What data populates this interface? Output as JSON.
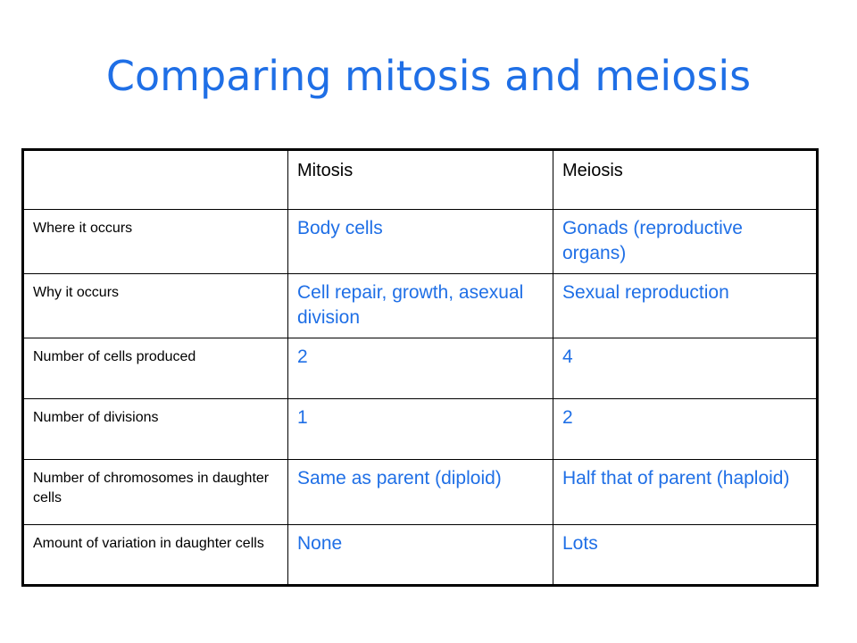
{
  "slide": {
    "title": "Comparing mitosis and meiosis"
  },
  "table": {
    "headers": [
      "",
      "Mitosis",
      "Meiosis"
    ],
    "rows": [
      {
        "label": "Where it occurs",
        "mitosis": "Body cells",
        "meiosis": "Gonads (reproductive organs)"
      },
      {
        "label": "Why it occurs",
        "mitosis": "Cell repair, growth, asexual division",
        "meiosis": "Sexual reproduction"
      },
      {
        "label": "Number of cells produced",
        "mitosis": "2",
        "meiosis": "4"
      },
      {
        "label": "Number of divisions",
        "mitosis": "1",
        "meiosis": "2"
      },
      {
        "label": "Number of chromosomes in daughter cells",
        "mitosis": "Same as parent (diploid)",
        "meiosis": "Half that of parent (haploid)"
      },
      {
        "label": "Amount of variation in daughter cells",
        "mitosis": "None",
        "meiosis": "Lots"
      }
    ]
  },
  "colors": {
    "accent": "#1f6fe6",
    "text": "#000000",
    "background": "#ffffff"
  }
}
